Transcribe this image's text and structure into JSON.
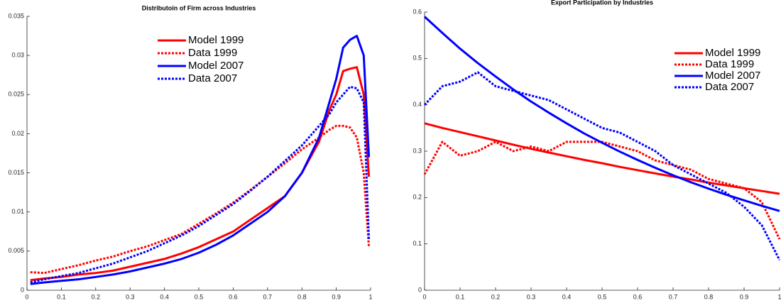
{
  "chart_data": [
    {
      "type": "line",
      "title": "Distributoin of Firm across Industries",
      "x": [
        0.01,
        0.05,
        0.1,
        0.15,
        0.2,
        0.25,
        0.3,
        0.35,
        0.4,
        0.45,
        0.5,
        0.55,
        0.6,
        0.65,
        0.7,
        0.75,
        0.8,
        0.85,
        0.88,
        0.9,
        0.92,
        0.94,
        0.96,
        0.98,
        0.995
      ],
      "series": [
        {
          "name": "Model 1999",
          "color": "#ff0000",
          "style": "solid",
          "values": [
            0.0013,
            0.0015,
            0.0017,
            0.002,
            0.0022,
            0.0025,
            0.003,
            0.0035,
            0.004,
            0.0047,
            0.0055,
            0.0065,
            0.0075,
            0.009,
            0.0105,
            0.012,
            0.015,
            0.019,
            0.023,
            0.025,
            0.028,
            0.0283,
            0.0285,
            0.025,
            0.0145
          ]
        },
        {
          "name": "Data 1999",
          "color": "#ff0000",
          "style": "dotted",
          "values": [
            0.0023,
            0.0022,
            0.0027,
            0.0032,
            0.0038,
            0.0043,
            0.005,
            0.0056,
            0.0064,
            0.0072,
            0.0085,
            0.0098,
            0.0112,
            0.0128,
            0.0145,
            0.0162,
            0.018,
            0.0195,
            0.0205,
            0.021,
            0.021,
            0.0208,
            0.0195,
            0.015,
            0.0055
          ]
        },
        {
          "name": "Model 2007",
          "color": "#0000ff",
          "style": "solid",
          "values": [
            0.0008,
            0.001,
            0.0012,
            0.0014,
            0.0017,
            0.002,
            0.0024,
            0.0029,
            0.0034,
            0.004,
            0.0048,
            0.0058,
            0.007,
            0.0085,
            0.01,
            0.012,
            0.015,
            0.0195,
            0.024,
            0.027,
            0.031,
            0.032,
            0.0325,
            0.03,
            0.017
          ]
        },
        {
          "name": "Data 2007",
          "color": "#0000ff",
          "style": "dotted",
          "values": [
            0.001,
            0.0014,
            0.0018,
            0.0022,
            0.0028,
            0.0034,
            0.0042,
            0.005,
            0.006,
            0.007,
            0.0082,
            0.0096,
            0.011,
            0.0127,
            0.0145,
            0.0165,
            0.0185,
            0.021,
            0.0225,
            0.024,
            0.025,
            0.026,
            0.0258,
            0.024,
            0.0065
          ]
        }
      ],
      "xlim": [
        0,
        1
      ],
      "xticks": [
        0,
        0.1,
        0.2,
        0.3,
        0.4,
        0.5,
        0.6,
        0.7,
        0.8,
        0.9,
        1
      ],
      "ylim": [
        0,
        0.035
      ],
      "yticks": [
        0,
        0.005,
        0.01,
        0.015,
        0.02,
        0.025,
        0.03,
        0.035
      ],
      "legend": "top-center",
      "grid": false
    },
    {
      "type": "line",
      "title": "Export Participation by Industries",
      "x": [
        0,
        0.05,
        0.1,
        0.15,
        0.2,
        0.25,
        0.3,
        0.35,
        0.4,
        0.45,
        0.5,
        0.55,
        0.6,
        0.65,
        0.7,
        0.75,
        0.8,
        0.85,
        0.9,
        0.95,
        1
      ],
      "series": [
        {
          "name": "Model 1999",
          "color": "#ff0000",
          "style": "solid",
          "values": [
            0.36,
            0.35,
            0.341,
            0.332,
            0.323,
            0.314,
            0.305,
            0.297,
            0.289,
            0.281,
            0.274,
            0.266,
            0.259,
            0.252,
            0.245,
            0.239,
            0.232,
            0.226,
            0.22,
            0.214,
            0.208
          ]
        },
        {
          "name": "Data 1999",
          "color": "#ff0000",
          "style": "dotted",
          "values": [
            0.25,
            0.32,
            0.29,
            0.3,
            0.32,
            0.3,
            0.31,
            0.3,
            0.32,
            0.32,
            0.32,
            0.31,
            0.3,
            0.28,
            0.27,
            0.26,
            0.24,
            0.23,
            0.22,
            0.19,
            0.11
          ]
        },
        {
          "name": "Model 2007",
          "color": "#0000ff",
          "style": "solid",
          "values": [
            0.59,
            0.555,
            0.521,
            0.49,
            0.461,
            0.433,
            0.407,
            0.383,
            0.36,
            0.338,
            0.318,
            0.299,
            0.281,
            0.264,
            0.248,
            0.233,
            0.219,
            0.206,
            0.194,
            0.182,
            0.171
          ]
        },
        {
          "name": "Data 2007",
          "color": "#0000ff",
          "style": "dotted",
          "values": [
            0.4,
            0.44,
            0.45,
            0.47,
            0.44,
            0.43,
            0.42,
            0.41,
            0.39,
            0.37,
            0.35,
            0.34,
            0.32,
            0.3,
            0.27,
            0.25,
            0.23,
            0.21,
            0.18,
            0.14,
            0.065
          ]
        }
      ],
      "xlim": [
        0,
        1
      ],
      "xticks": [
        0,
        0.1,
        0.2,
        0.3,
        0.4,
        0.5,
        0.6,
        0.7,
        0.8,
        0.9,
        1
      ],
      "ylim": [
        0,
        0.6
      ],
      "yticks": [
        0,
        0.1,
        0.2,
        0.3,
        0.4,
        0.5,
        0.6
      ],
      "legend": "top-right",
      "grid": false
    }
  ]
}
